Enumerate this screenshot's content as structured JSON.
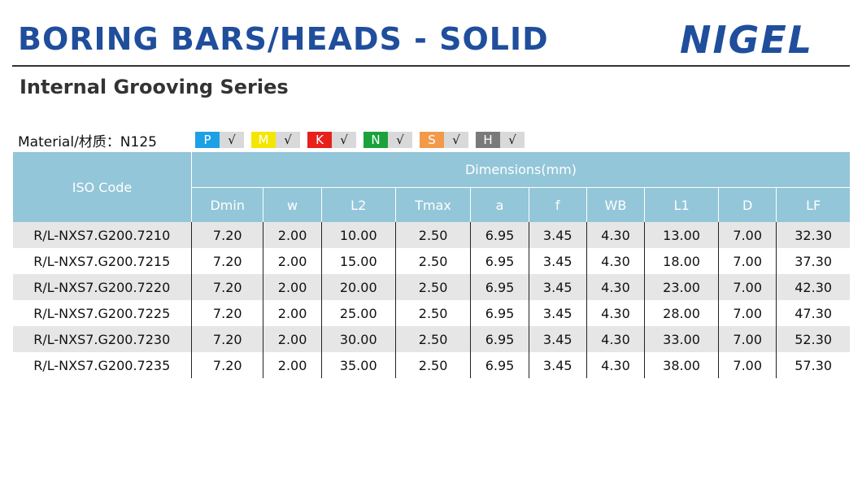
{
  "header": {
    "title": "BORING BARS/HEADS - SOLID",
    "logo": "NIGEL",
    "subtitle": "Internal Grooving Series"
  },
  "material": {
    "label": "Material/材质：N125",
    "grades": [
      {
        "key": "P",
        "mark": "√",
        "color": "#1ea0e6"
      },
      {
        "key": "M",
        "mark": "√",
        "color": "#f5e600"
      },
      {
        "key": "K",
        "mark": "√",
        "color": "#e8201c"
      },
      {
        "key": "N",
        "mark": "√",
        "color": "#1aa33a"
      },
      {
        "key": "S",
        "mark": "√",
        "color": "#f39a4a"
      },
      {
        "key": "H",
        "mark": "√",
        "color": "#7a7a7a"
      }
    ]
  },
  "table": {
    "iso_header": "ISO Code",
    "group_header": "Dimensions(mm)",
    "columns": [
      "Dmin",
      "w",
      "L2",
      "Tmax",
      "a",
      "f",
      "WB",
      "L1",
      "D",
      "LF"
    ],
    "rows": [
      [
        "R/L-NXS7.G200.7210",
        "7.20",
        "2.00",
        "10.00",
        "2.50",
        "6.95",
        "3.45",
        "4.30",
        "13.00",
        "7.00",
        "32.30"
      ],
      [
        "R/L-NXS7.G200.7215",
        "7.20",
        "2.00",
        "15.00",
        "2.50",
        "6.95",
        "3.45",
        "4.30",
        "18.00",
        "7.00",
        "37.30"
      ],
      [
        "R/L-NXS7.G200.7220",
        "7.20",
        "2.00",
        "20.00",
        "2.50",
        "6.95",
        "3.45",
        "4.30",
        "23.00",
        "7.00",
        "42.30"
      ],
      [
        "R/L-NXS7.G200.7225",
        "7.20",
        "2.00",
        "25.00",
        "2.50",
        "6.95",
        "3.45",
        "4.30",
        "28.00",
        "7.00",
        "47.30"
      ],
      [
        "R/L-NXS7.G200.7230",
        "7.20",
        "2.00",
        "30.00",
        "2.50",
        "6.95",
        "3.45",
        "4.30",
        "33.00",
        "7.00",
        "52.30"
      ],
      [
        "R/L-NXS7.G200.7235",
        "7.20",
        "2.00",
        "35.00",
        "2.50",
        "6.95",
        "3.45",
        "4.30",
        "38.00",
        "7.00",
        "57.30"
      ]
    ]
  }
}
